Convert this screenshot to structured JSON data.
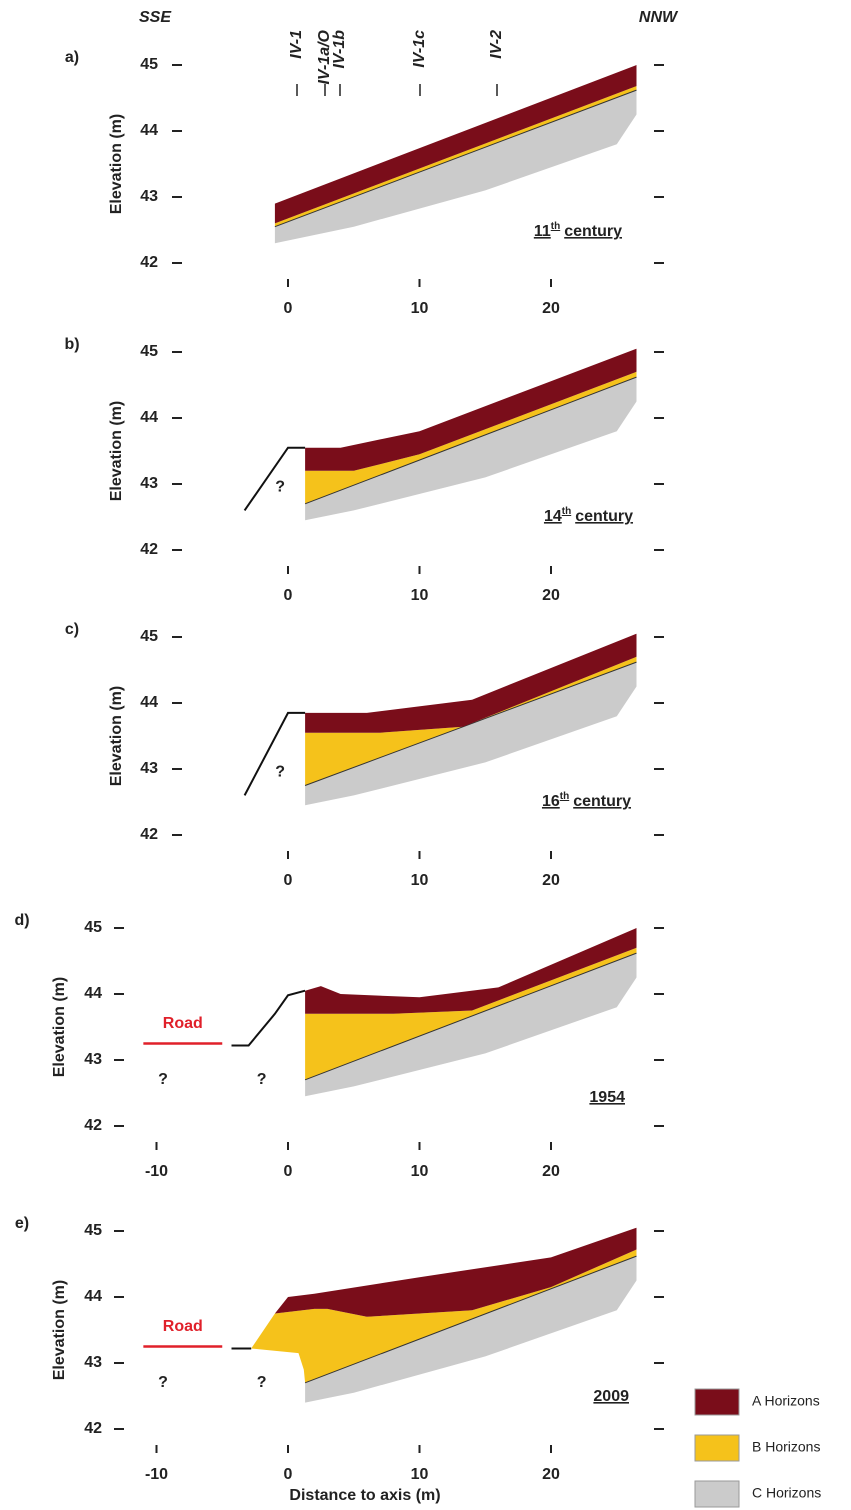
{
  "directions": {
    "left": "SSE",
    "right": "NNW"
  },
  "profiles": [
    "IV-1",
    "IV-1a/O",
    "IV-1b",
    "IV-1c",
    "IV-2"
  ],
  "panels": [
    {
      "letter": "a)",
      "y_axis_label": "Elevation (m)",
      "yticks": [
        42,
        43,
        44,
        45
      ],
      "xticks": [
        0,
        10,
        20
      ],
      "period": {
        "number": "11",
        "suffix": "th",
        "word": "century"
      }
    },
    {
      "letter": "b)",
      "y_axis_label": "Elevation (m)",
      "yticks": [
        42,
        43,
        44,
        45
      ],
      "xticks": [
        0,
        10,
        20
      ],
      "period": {
        "number": "14",
        "suffix": "th",
        "word": "century"
      },
      "unknown": [
        "?"
      ]
    },
    {
      "letter": "c)",
      "y_axis_label": "Elevation (m)",
      "yticks": [
        42,
        43,
        44,
        45
      ],
      "xticks": [
        0,
        10,
        20
      ],
      "period": {
        "number": "16",
        "suffix": "th",
        "word": "century"
      },
      "unknown": [
        "?"
      ]
    },
    {
      "letter": "d)",
      "y_axis_label": "Elevation (m)",
      "yticks": [
        42,
        43,
        44,
        45
      ],
      "xticks": [
        -10,
        0,
        10,
        20
      ],
      "period": {
        "number": "1954"
      },
      "road": "Road",
      "unknown": [
        "?",
        "?"
      ]
    },
    {
      "letter": "e)",
      "y_axis_label": "Elevation (m)",
      "yticks": [
        42,
        43,
        44,
        45
      ],
      "xticks": [
        -10,
        0,
        10,
        20
      ],
      "period": {
        "number": "2009"
      },
      "road": "Road",
      "unknown": [
        "?",
        "?"
      ],
      "x_axis_label": "Distance to axis (m)"
    }
  ],
  "legend": [
    "A Horizons",
    "B Horizons",
    "C Horizons"
  ]
}
